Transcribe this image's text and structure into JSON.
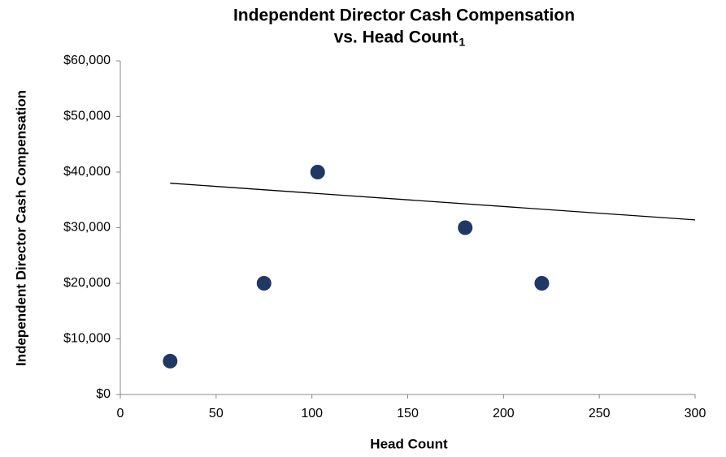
{
  "chart_data": {
    "type": "scatter",
    "title": [
      "Independent Director Cash Compensation",
      "vs. Head Count"
    ],
    "title_footnote": "1",
    "x_label": "Head Count",
    "y_label": "Independent Director Cash Compensation",
    "x": [
      26,
      75,
      103,
      180,
      220
    ],
    "values": [
      6000,
      20000,
      40000,
      30000,
      20000
    ],
    "color": "#1f3864",
    "trendline": {
      "x": [
        26,
        300
      ],
      "values": [
        38000,
        31400
      ],
      "color": "#000000"
    },
    "xlim": [
      0,
      300
    ],
    "xticks": [
      0,
      50,
      100,
      150,
      200,
      250,
      300
    ],
    "ylim": [
      0,
      60000
    ],
    "yticks": [
      {
        "value": 0,
        "label": "$0"
      },
      {
        "value": 10000,
        "label": "$10,000"
      },
      {
        "value": 20000,
        "label": "$20,000"
      },
      {
        "value": 30000,
        "label": "$30,000"
      },
      {
        "value": 40000,
        "label": "$40,000"
      },
      {
        "value": 50000,
        "label": "$50,000"
      },
      {
        "value": 60000,
        "label": "$60,000"
      }
    ],
    "grid": false
  }
}
